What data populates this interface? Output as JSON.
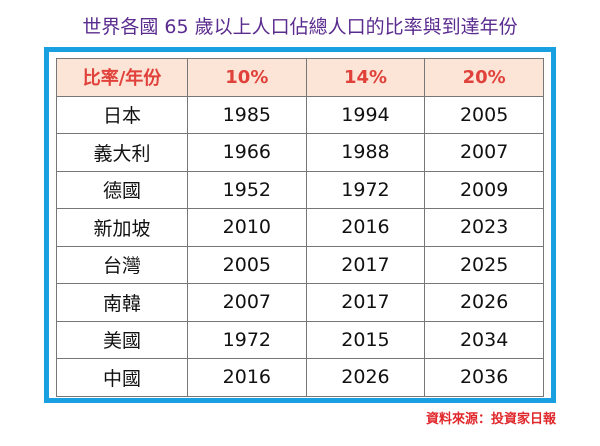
{
  "title": "世界各國 65 歲以上人口佔總人口的比率與到達年份",
  "table": {
    "header": [
      "比率/年份",
      "10%",
      "14%",
      "20%"
    ],
    "rows": [
      [
        "日本",
        1985,
        1994,
        2005
      ],
      [
        "義大利",
        1966,
        1988,
        2007
      ],
      [
        "德國",
        1952,
        1972,
        2009
      ],
      [
        "新加坡",
        2010,
        2016,
        2023
      ],
      [
        "台灣",
        2005,
        2017,
        2025
      ],
      [
        "南韓",
        2007,
        2017,
        2026
      ],
      [
        "美國",
        1972,
        2015,
        2034
      ],
      [
        "中國",
        2016,
        2026,
        2036
      ]
    ]
  },
  "source": "資料來源：投資家日報"
}
